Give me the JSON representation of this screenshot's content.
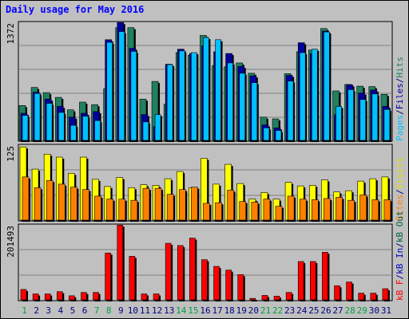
{
  "title": "Daily usage for May 2016",
  "colors": {
    "background": "#c0c0c0",
    "panel_bg": "#c0c0c0",
    "grid": "#808080",
    "pages": "#00c0ff",
    "files": "#0000a0",
    "hits": "#208060",
    "visits": "#ffff00",
    "sites": "#ff8000",
    "kb": "#ff0000",
    "kb_out": "#006040",
    "kb_in": "#0000c0",
    "weekend": "#00a040",
    "weekday": "#000080",
    "title": "#0000ff"
  },
  "legends": {
    "top": [
      {
        "text": "Pages",
        "color": "#00c0ff"
      },
      {
        "text": "/",
        "color": "#000080"
      },
      {
        "text": "Files",
        "color": "#0000a0"
      },
      {
        "text": "/",
        "color": "#000080"
      },
      {
        "text": "Hits",
        "color": "#208060"
      }
    ],
    "middle": [
      {
        "text": "Sites",
        "color": "#ff8000"
      },
      {
        "text": "/",
        "color": "#000080"
      },
      {
        "text": "Visits",
        "color": "#e0e000"
      }
    ],
    "bottom": [
      {
        "text": "kB F",
        "color": "#ff0000"
      },
      {
        "text": "/",
        "color": "#000080"
      },
      {
        "text": "kB In",
        "color": "#0000c0"
      },
      {
        "text": "/",
        "color": "#000080"
      },
      {
        "text": "kB Out",
        "color": "#006040"
      }
    ]
  },
  "chart_data": [
    {
      "type": "bar",
      "panel": "top",
      "ymax_label": "1372",
      "ylim": [
        0,
        1372
      ],
      "categories": [
        "1",
        "2",
        "3",
        "4",
        "5",
        "6",
        "7",
        "8",
        "9",
        "10",
        "11",
        "12",
        "13",
        "14",
        "15",
        "16",
        "17",
        "18",
        "19",
        "20",
        "21",
        "22",
        "23",
        "24",
        "25",
        "26",
        "27",
        "28",
        "29",
        "30",
        "31"
      ],
      "series": [
        {
          "name": "Hits",
          "values": [
            405,
            615,
            555,
            500,
            355,
            445,
            415,
            600,
            1310,
            1310,
            480,
            685,
            420,
            1020,
            990,
            1220,
            870,
            855,
            900,
            780,
            270,
            250,
            775,
            1030,
            1050,
            1300,
            575,
            650,
            630,
            625,
            535
          ]
        },
        {
          "name": "Files",
          "values": [
            315,
            560,
            480,
            395,
            270,
            315,
            335,
            1170,
            1370,
            1070,
            300,
            160,
            885,
            1060,
            1010,
            1100,
            1030,
            1010,
            860,
            750,
            180,
            145,
            755,
            1135,
            1010,
            1270,
            300,
            645,
            550,
            585,
            395
          ]
        },
        {
          "name": "Pages",
          "values": [
            290,
            545,
            430,
            325,
            175,
            280,
            230,
            1140,
            1265,
            1035,
            215,
            300,
            880,
            1040,
            1020,
            1195,
            1170,
            900,
            780,
            670,
            145,
            115,
            690,
            1020,
            1060,
            1260,
            395,
            590,
            475,
            540,
            360
          ]
        }
      ]
    },
    {
      "type": "bar",
      "panel": "middle",
      "ymax_label": "125",
      "ylim": [
        0,
        125
      ],
      "categories": [
        "1",
        "2",
        "3",
        "4",
        "5",
        "6",
        "7",
        "8",
        "9",
        "10",
        "11",
        "12",
        "13",
        "14",
        "15",
        "16",
        "17",
        "18",
        "19",
        "20",
        "21",
        "22",
        "23",
        "24",
        "25",
        "26",
        "27",
        "28",
        "29",
        "30",
        "31"
      ],
      "series": [
        {
          "name": "Visits",
          "values": [
            122,
            85,
            110,
            105,
            78,
            105,
            68,
            56,
            71,
            54,
            59,
            58,
            69,
            81,
            54,
            103,
            60,
            93,
            61,
            35,
            46,
            35,
            63,
            57,
            58,
            67,
            47,
            49,
            65,
            69,
            72
          ]
        },
        {
          "name": "Sites",
          "values": [
            72,
            54,
            66,
            60,
            55,
            51,
            40,
            35,
            35,
            33,
            53,
            53,
            43,
            51,
            55,
            28,
            29,
            50,
            31,
            30,
            35,
            23,
            40,
            35,
            34,
            36,
            38,
            33,
            42,
            34,
            34
          ]
        }
      ]
    },
    {
      "type": "bar",
      "panel": "bottom",
      "ymax_label": "201493",
      "ylim": [
        0,
        201493
      ],
      "categories": [
        "1",
        "2",
        "3",
        "4",
        "5",
        "6",
        "7",
        "8",
        "9",
        "10",
        "11",
        "12",
        "13",
        "14",
        "15",
        "16",
        "17",
        "18",
        "19",
        "20",
        "21",
        "22",
        "23",
        "24",
        "25",
        "26",
        "27",
        "28",
        "29",
        "30",
        "31"
      ],
      "series": [
        {
          "name": "kB F",
          "values": [
            28000,
            16000,
            16000,
            22000,
            11000,
            20000,
            20000,
            126000,
            201000,
            117000,
            16000,
            16000,
            152000,
            146000,
            166000,
            108000,
            90000,
            80000,
            68000,
            4000,
            12000,
            10000,
            20000,
            103000,
            103000,
            128000,
            38000,
            48000,
            18000,
            18000,
            30000
          ]
        }
      ]
    }
  ],
  "x_ticks": [
    {
      "label": "1",
      "weekend": true
    },
    {
      "label": "2",
      "weekend": false
    },
    {
      "label": "3",
      "weekend": false
    },
    {
      "label": "4",
      "weekend": false
    },
    {
      "label": "5",
      "weekend": false
    },
    {
      "label": "6",
      "weekend": false
    },
    {
      "label": "7",
      "weekend": true
    },
    {
      "label": "8",
      "weekend": true
    },
    {
      "label": "9",
      "weekend": false
    },
    {
      "label": "10",
      "weekend": false
    },
    {
      "label": "11",
      "weekend": false
    },
    {
      "label": "12",
      "weekend": false
    },
    {
      "label": "13",
      "weekend": false
    },
    {
      "label": "14",
      "weekend": true
    },
    {
      "label": "15",
      "weekend": true
    },
    {
      "label": "16",
      "weekend": false
    },
    {
      "label": "17",
      "weekend": false
    },
    {
      "label": "18",
      "weekend": false
    },
    {
      "label": "19",
      "weekend": false
    },
    {
      "label": "20",
      "weekend": false
    },
    {
      "label": "21",
      "weekend": true
    },
    {
      "label": "22",
      "weekend": true
    },
    {
      "label": "23",
      "weekend": false
    },
    {
      "label": "24",
      "weekend": false
    },
    {
      "label": "25",
      "weekend": false
    },
    {
      "label": "26",
      "weekend": false
    },
    {
      "label": "27",
      "weekend": false
    },
    {
      "label": "28",
      "weekend": true
    },
    {
      "label": "29",
      "weekend": true
    },
    {
      "label": "30",
      "weekend": false
    },
    {
      "label": "31",
      "weekend": false
    }
  ]
}
